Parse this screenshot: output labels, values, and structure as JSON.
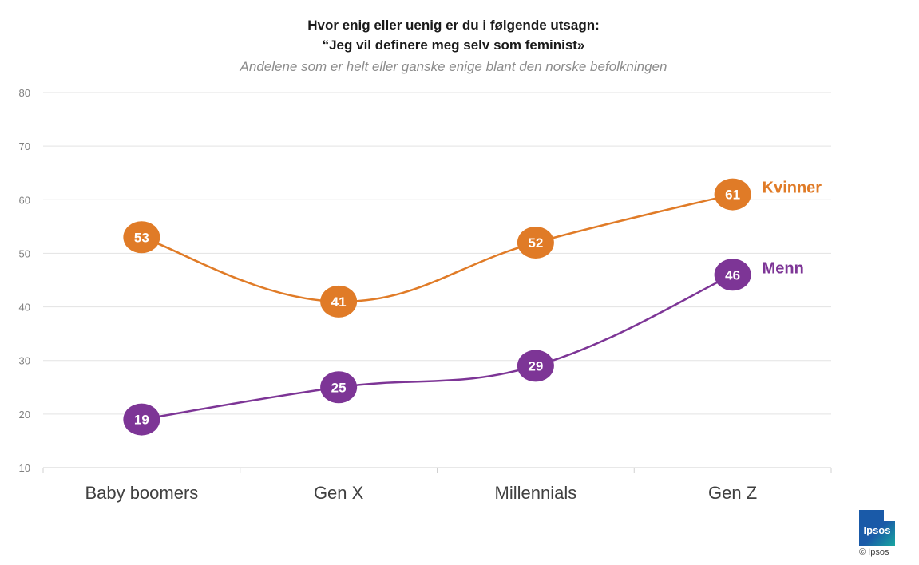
{
  "chart_data": {
    "type": "line",
    "title_line1": "Hvor enig eller uenig er du i følgende utsagn:",
    "title_line2": "“Jeg vil definere meg selv som feminist»",
    "subtitle": "Andelene som er helt eller ganske enige blant den norske befolkningen",
    "categories": [
      "Baby boomers",
      "Gen X",
      "Millennials",
      "Gen Z"
    ],
    "ylim": [
      10,
      80
    ],
    "yticks": [
      10,
      20,
      30,
      40,
      50,
      60,
      70,
      80
    ],
    "grid": true,
    "series": [
      {
        "name": "Kvinner",
        "values": [
          53,
          41,
          52,
          61
        ],
        "color": "#e07b27"
      },
      {
        "name": "Menn",
        "values": [
          19,
          25,
          29,
          46
        ],
        "color": "#7d3596"
      }
    ]
  },
  "logo": {
    "text": "Ipsos",
    "copyright": "© Ipsos"
  }
}
